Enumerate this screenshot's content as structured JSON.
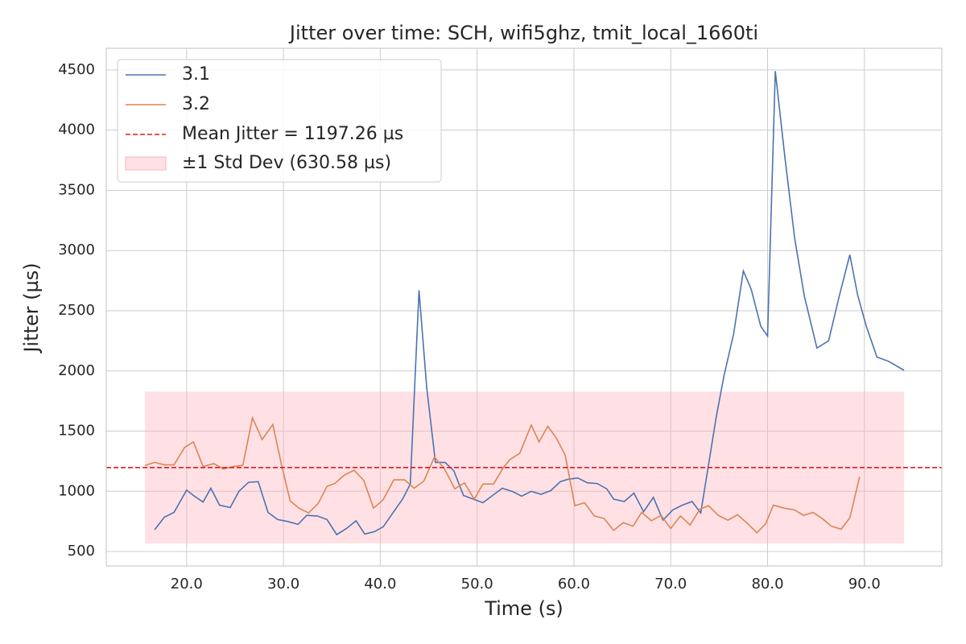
{
  "chart_data": {
    "type": "line",
    "title": "Jitter over time: SCH, wifi5ghz, tmit_local_1660ti",
    "x_label": "Time (s)",
    "y_label": "Jitter (µs)",
    "xlim": [
      11.7,
      98.0
    ],
    "ylim": [
      380,
      4680
    ],
    "xticks": [
      {
        "value": 20,
        "label": "20.0"
      },
      {
        "value": 30,
        "label": "30.0"
      },
      {
        "value": 40,
        "label": "40.0"
      },
      {
        "value": 50,
        "label": "50.0"
      },
      {
        "value": 60,
        "label": "60.0"
      },
      {
        "value": 70,
        "label": "70.0"
      },
      {
        "value": 80,
        "label": "80.0"
      },
      {
        "value": 90,
        "label": "90.0"
      }
    ],
    "yticks": [
      500,
      1000,
      1500,
      2000,
      2500,
      3000,
      3500,
      4000,
      4500
    ],
    "grid": true,
    "legend": "upper left",
    "mean": 1197.26,
    "std": 630.58,
    "mean_color": "#e41a1c",
    "band_color": "#ffb3bd",
    "mean_label": "Mean Jitter = 1197.26 µs",
    "std_label": "±1 Std Dev (630.58 µs)",
    "series": [
      {
        "name": "3.1",
        "color": "#4c72b0",
        "x": [
          16.7,
          17.7,
          18.7,
          20.0,
          20.7,
          21.7,
          22.5,
          23.4,
          24.5,
          25.4,
          26.4,
          27.4,
          28.4,
          29.4,
          30.4,
          31.5,
          32.4,
          33.5,
          34.5,
          35.5,
          36.5,
          37.5,
          38.4,
          39.4,
          40.3,
          41.3,
          42.3,
          43.1,
          44.0,
          44.8,
          45.7,
          46.7,
          47.6,
          48.6,
          49.6,
          50.6,
          51.6,
          52.6,
          53.6,
          54.6,
          55.6,
          56.6,
          57.6,
          58.6,
          59.4,
          60.4,
          61.4,
          62.4,
          63.4,
          64.1,
          65.2,
          66.2,
          67.2,
          68.2,
          69.2,
          70.2,
          71.2,
          72.2,
          73.1,
          74.7,
          75.5,
          76.5,
          77.5,
          78.3,
          79.3,
          80.0,
          80.8,
          81.8,
          82.8,
          83.8,
          85.1,
          86.3,
          87.4,
          88.5,
          89.3,
          90.2,
          91.3,
          92.5,
          94.1
        ],
        "values": [
          680,
          785,
          825,
          1010,
          965,
          910,
          1025,
          885,
          865,
          1000,
          1075,
          1080,
          825,
          765,
          750,
          725,
          800,
          795,
          765,
          640,
          690,
          755,
          645,
          665,
          705,
          820,
          935,
          1060,
          2670,
          1860,
          1240,
          1240,
          1170,
          965,
          935,
          905,
          965,
          1025,
          1000,
          960,
          1000,
          975,
          1005,
          1080,
          1100,
          1110,
          1070,
          1065,
          1020,
          935,
          915,
          985,
          830,
          950,
          760,
          845,
          885,
          915,
          820,
          1620,
          1960,
          2310,
          2830,
          2680,
          2370,
          2290,
          4490,
          3770,
          3100,
          2620,
          2190,
          2250,
          2620,
          2965,
          2630,
          2370,
          2115,
          2080,
          2005
        ]
      },
      {
        "name": "3.2",
        "color": "#dd8452",
        "x": [
          15.7,
          16.7,
          17.7,
          18.7,
          19.8,
          20.7,
          21.7,
          22.8,
          23.8,
          24.8,
          25.8,
          26.8,
          27.8,
          28.9,
          29.8,
          30.7,
          31.6,
          32.6,
          33.6,
          34.5,
          35.3,
          36.3,
          37.3,
          38.3,
          39.3,
          40.3,
          41.4,
          42.5,
          43.5,
          44.5,
          45.6,
          46.6,
          47.7,
          48.7,
          49.7,
          50.6,
          51.7,
          52.7,
          53.4,
          54.4,
          55.6,
          56.4,
          57.3,
          58.2,
          59.1,
          60.1,
          61.1,
          62.1,
          63.1,
          64.1,
          65.1,
          66.1,
          67.0,
          68.0,
          69.0,
          70.0,
          71.0,
          72.0,
          73.0,
          73.9,
          74.9,
          75.9,
          76.9,
          77.9,
          78.9,
          79.8,
          80.6,
          81.7,
          82.8,
          83.7,
          84.7,
          85.7,
          86.6,
          87.6,
          88.5,
          89.5
        ],
        "values": [
          1215,
          1240,
          1220,
          1220,
          1365,
          1410,
          1205,
          1230,
          1185,
          1205,
          1215,
          1610,
          1430,
          1555,
          1220,
          920,
          860,
          820,
          900,
          1040,
          1065,
          1135,
          1175,
          1090,
          860,
          930,
          1095,
          1095,
          1025,
          1085,
          1285,
          1190,
          1020,
          1070,
          935,
          1060,
          1060,
          1195,
          1265,
          1315,
          1550,
          1410,
          1540,
          1440,
          1300,
          880,
          905,
          795,
          775,
          675,
          740,
          710,
          825,
          755,
          800,
          690,
          795,
          720,
          850,
          880,
          800,
          760,
          805,
          735,
          655,
          730,
          885,
          860,
          845,
          800,
          825,
          770,
          710,
          685,
          780,
          1120
        ]
      }
    ]
  }
}
